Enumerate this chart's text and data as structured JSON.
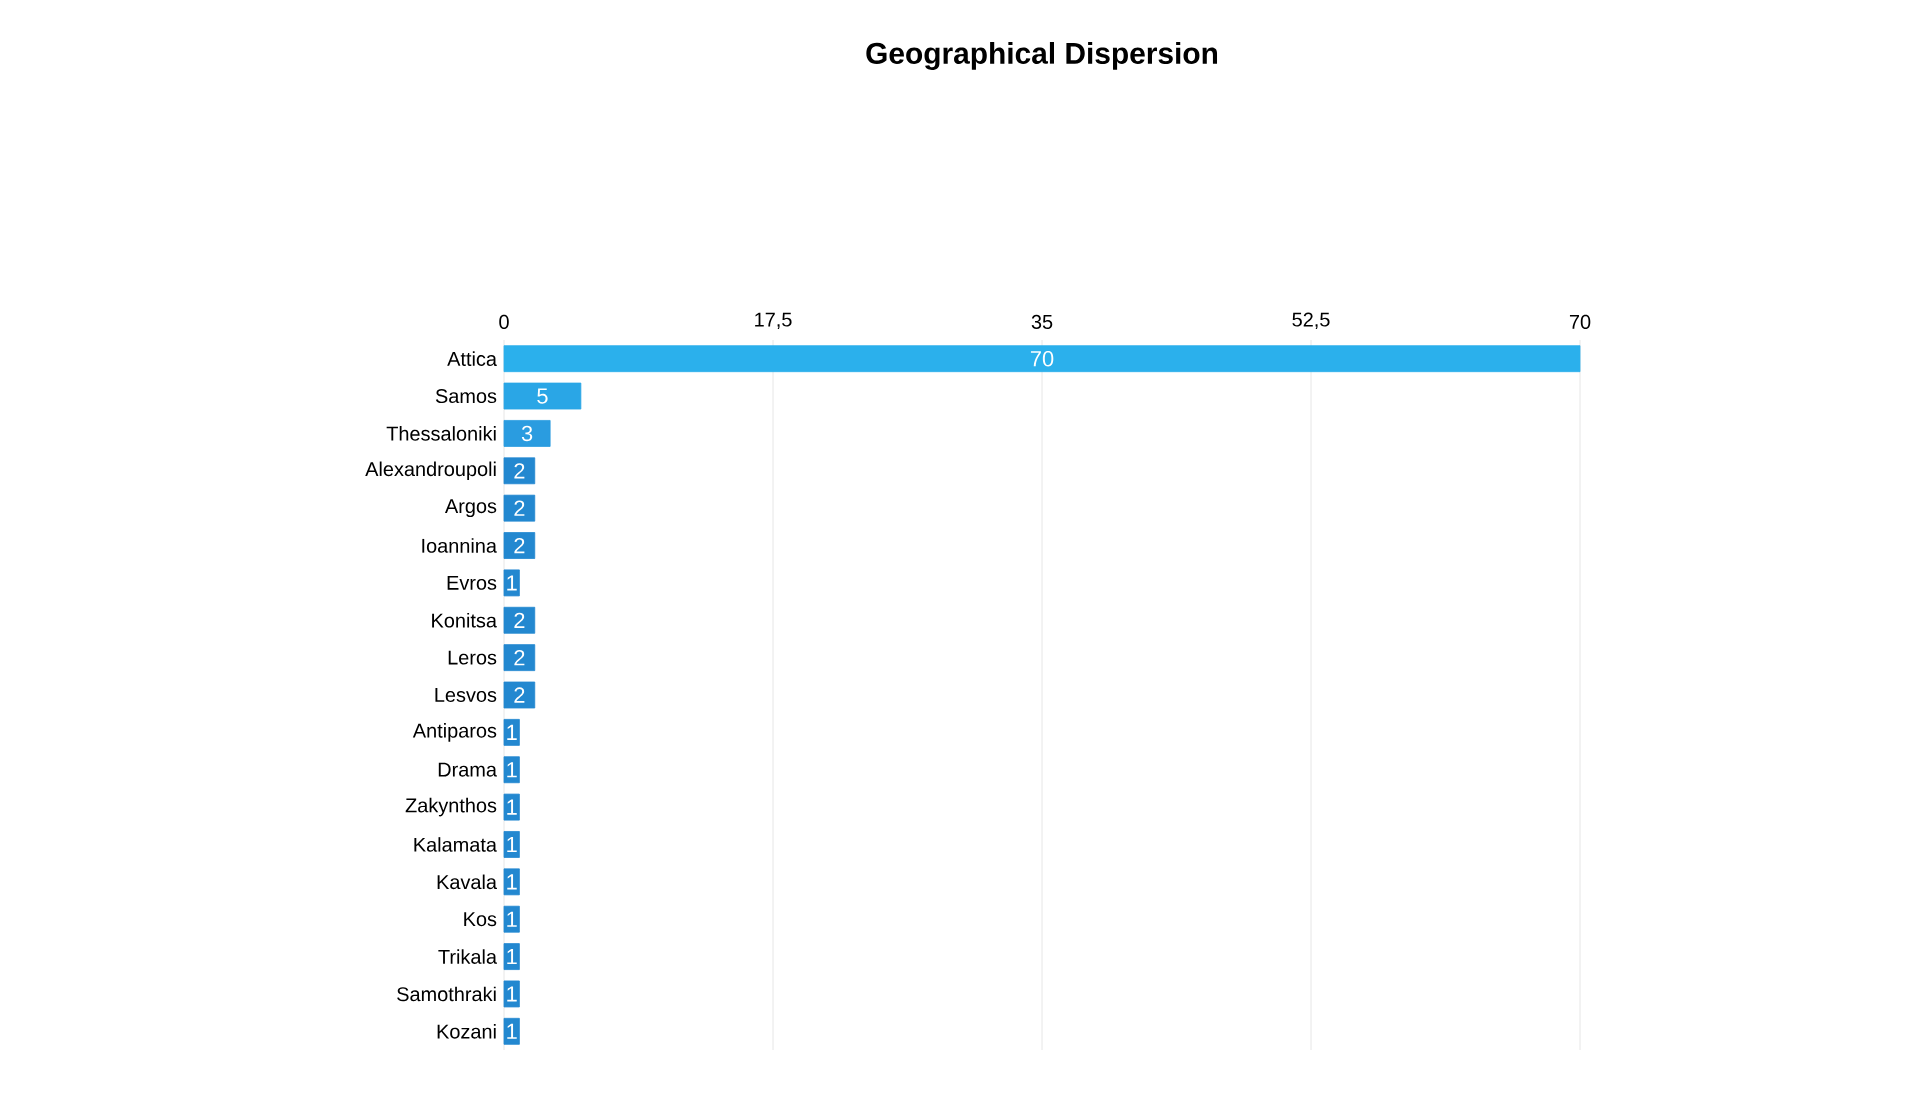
{
  "chart_data": {
    "type": "bar",
    "orientation": "horizontal",
    "title": "Geographical Dispersion",
    "categories": [
      "Attica",
      "Samos",
      "Thessaloniki",
      "Alexandroupoli",
      "Argos",
      "Ioannina",
      "Evros",
      "Konitsa",
      "Leros",
      "Lesvos",
      "Antiparos",
      "Drama",
      "Zakynthos",
      "Kalamata",
      "Kavala",
      "Kos",
      "Trikala",
      "Samothraki",
      "Kozani"
    ],
    "values": [
      70,
      5,
      3,
      2,
      2,
      2,
      1,
      2,
      2,
      2,
      1,
      1,
      1,
      1,
      1,
      1,
      1,
      1,
      1
    ],
    "colors": [
      "#2bb0ec",
      "#2aa6e6",
      "#2a9ce0",
      "#2388d0",
      "#2388d0",
      "#2388d0",
      "#2388d0",
      "#2388d0",
      "#2388d0",
      "#2388d0",
      "#2388d0",
      "#2388d0",
      "#2388d0",
      "#2388d0",
      "#2388d0",
      "#2388d0",
      "#2388d0",
      "#2388d0",
      "#2388d0"
    ],
    "xlim": [
      0,
      70
    ],
    "xticks": [
      0,
      {
        "value": 17.5,
        "label": "17,5"
      },
      35,
      {
        "value": 52.5,
        "label": "52,5"
      },
      70
    ],
    "grid": "x",
    "data_labels": true
  }
}
